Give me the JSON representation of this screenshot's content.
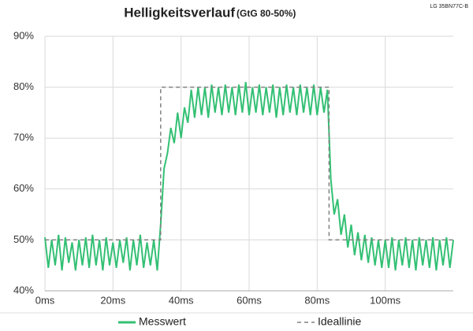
{
  "chart_data": {
    "type": "line",
    "title": "Helligkeitsverlauf",
    "subtitle": "(GtG 80-50%)",
    "annotation": "LG 35BN77C-B",
    "xlim": [
      0,
      120
    ],
    "xticks": [
      {
        "value": 0,
        "label": "0ms"
      },
      {
        "value": 20,
        "label": "20ms"
      },
      {
        "value": 40,
        "label": "40ms"
      },
      {
        "value": 60,
        "label": "60ms"
      },
      {
        "value": 80,
        "label": "80ms"
      },
      {
        "value": 100,
        "label": "100ms"
      }
    ],
    "ylim": [
      40,
      90
    ],
    "yticks": [
      {
        "value": 40,
        "label": "40%"
      },
      {
        "value": 50,
        "label": "50%"
      },
      {
        "value": 60,
        "label": "60%"
      },
      {
        "value": 70,
        "label": "70%"
      },
      {
        "value": 80,
        "label": "80%"
      },
      {
        "value": 90,
        "label": "90%"
      }
    ],
    "grid": true,
    "legend": "bottom",
    "series": [
      {
        "name": "Messwert",
        "color": "#33c074",
        "dash": false,
        "x": [
          0,
          1,
          2,
          3,
          4,
          5,
          6,
          7,
          8,
          9,
          10,
          11,
          12,
          13,
          14,
          15,
          16,
          17,
          18,
          19,
          20,
          21,
          22,
          23,
          24,
          25,
          26,
          27,
          28,
          29,
          30,
          31,
          32,
          33,
          34,
          35,
          36,
          37,
          38,
          39,
          40,
          41,
          42,
          43,
          44,
          45,
          46,
          47,
          48,
          49,
          50,
          51,
          52,
          53,
          54,
          55,
          56,
          57,
          58,
          59,
          60,
          61,
          62,
          63,
          64,
          65,
          66,
          67,
          68,
          69,
          70,
          71,
          72,
          73,
          74,
          75,
          76,
          77,
          78,
          79,
          80,
          81,
          82,
          83,
          84,
          85,
          86,
          87,
          88,
          89,
          90,
          91,
          92,
          93,
          94,
          95,
          96,
          97,
          98,
          99,
          100,
          101,
          102,
          103,
          104,
          105,
          106,
          107,
          108,
          109,
          110,
          111,
          112,
          113,
          114,
          115,
          116,
          117,
          118,
          119,
          120
        ],
        "values": [
          50.5,
          44.5,
          50,
          45,
          51,
          44,
          50.5,
          45.5,
          49.5,
          44,
          50,
          45,
          50.5,
          44.5,
          51,
          45,
          50,
          44,
          50.5,
          45,
          49.5,
          44.5,
          50,
          45.5,
          50.5,
          44,
          50,
          45,
          51,
          44.5,
          49.5,
          45,
          50,
          44,
          53,
          64,
          67,
          72,
          69,
          75,
          70,
          76,
          73,
          79.5,
          74,
          80,
          74.5,
          80,
          74,
          80.5,
          75,
          80,
          74.5,
          80.5,
          75,
          80,
          74.5,
          80.5,
          75,
          81,
          74.5,
          80,
          75,
          80.5,
          74.5,
          80,
          75,
          80.5,
          74,
          80,
          74.5,
          80.5,
          75,
          80,
          74.5,
          80.5,
          75,
          80,
          74.5,
          80.5,
          74.5,
          80,
          75,
          79.5,
          62,
          55,
          58,
          51,
          55,
          48.5,
          53,
          47,
          51.5,
          46,
          51,
          45.5,
          50.5,
          45,
          50,
          44.5,
          50,
          44.5,
          50.5,
          44,
          50,
          45,
          50.5,
          44.5,
          50,
          44,
          50.5,
          45,
          50,
          44.5,
          50.5,
          44,
          50,
          45,
          50.5,
          44.5,
          50
        ]
      },
      {
        "name": "Ideallinie",
        "color": "#808080",
        "dash": true,
        "x": [
          0,
          34,
          34,
          83.5,
          83.5,
          120
        ],
        "values": [
          50,
          50,
          80,
          80,
          50,
          50
        ]
      }
    ]
  }
}
